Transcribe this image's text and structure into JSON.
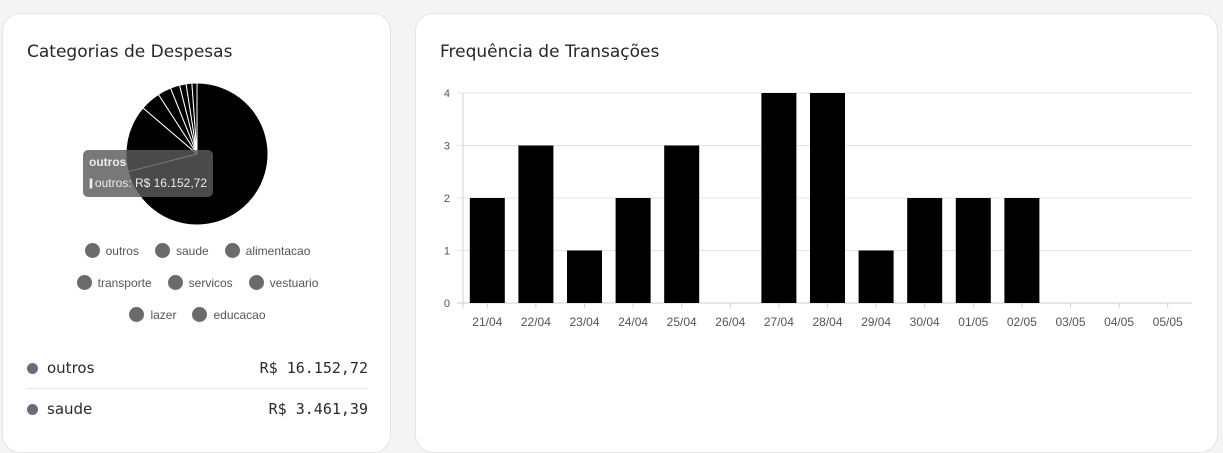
{
  "left_card": {
    "title": "Categorias de Despesas",
    "tooltip": {
      "title": "outros",
      "label": "outros: R$ 16.152,72"
    },
    "legend": [
      [
        "outros",
        "saude",
        "alimentacao"
      ],
      [
        "transporte",
        "servicos",
        "vestuario"
      ],
      [
        "lazer",
        "educacao"
      ]
    ],
    "list": [
      {
        "name": "outros",
        "value": "R$ 16.152,72"
      },
      {
        "name": "saude",
        "value": "R$ 3.461,39"
      }
    ]
  },
  "right_card": {
    "title": "Frequência de Transações"
  },
  "colors": {
    "mark": "#000000",
    "legend_dot": "#6b6b6b",
    "list_dot": "#71677f",
    "grid": "#e5e5e5"
  },
  "chart_data": [
    {
      "type": "pie",
      "title": "Categorias de Despesas",
      "labels": [
        "outros",
        "saude",
        "alimentacao",
        "transporte",
        "servicos",
        "vestuario",
        "lazer",
        "educacao"
      ],
      "values": [
        16152.72,
        3461.39,
        1050,
        700,
        480,
        340,
        300,
        260
      ],
      "legend_position": "bottom"
    },
    {
      "type": "bar",
      "title": "Frequência de Transações",
      "categories": [
        "21/04",
        "22/04",
        "23/04",
        "24/04",
        "25/04",
        "26/04",
        "27/04",
        "28/04",
        "29/04",
        "30/04",
        "01/05",
        "02/05",
        "03/05",
        "04/05",
        "05/05"
      ],
      "values": [
        2,
        3,
        1,
        2,
        3,
        0,
        4,
        4,
        1,
        2,
        2,
        2,
        0,
        0,
        0
      ],
      "yticks": [
        "0",
        "1",
        "2",
        "3",
        "4"
      ],
      "ylim": [
        0,
        4
      ],
      "grid": true
    }
  ]
}
